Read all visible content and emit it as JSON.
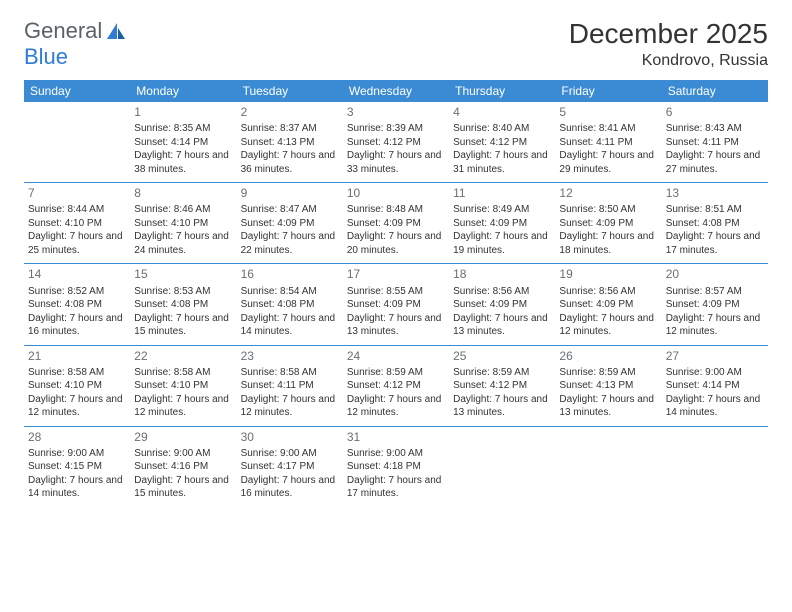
{
  "logo": {
    "part1": "General",
    "part2": "Blue"
  },
  "title": "December 2025",
  "location": "Kondrovo, Russia",
  "theme": {
    "header_bg": "#3b8bd4",
    "header_fg": "#ffffff",
    "rule_color": "#3b8bd4",
    "text_color": "#333333",
    "daynum_color": "#6a6f75",
    "page_bg": "#ffffff"
  },
  "days_of_week": [
    "Sunday",
    "Monday",
    "Tuesday",
    "Wednesday",
    "Thursday",
    "Friday",
    "Saturday"
  ],
  "weeks": [
    [
      null,
      {
        "n": "1",
        "sr": "8:35 AM",
        "ss": "4:14 PM",
        "dl": "7 hours and 38 minutes."
      },
      {
        "n": "2",
        "sr": "8:37 AM",
        "ss": "4:13 PM",
        "dl": "7 hours and 36 minutes."
      },
      {
        "n": "3",
        "sr": "8:39 AM",
        "ss": "4:12 PM",
        "dl": "7 hours and 33 minutes."
      },
      {
        "n": "4",
        "sr": "8:40 AM",
        "ss": "4:12 PM",
        "dl": "7 hours and 31 minutes."
      },
      {
        "n": "5",
        "sr": "8:41 AM",
        "ss": "4:11 PM",
        "dl": "7 hours and 29 minutes."
      },
      {
        "n": "6",
        "sr": "8:43 AM",
        "ss": "4:11 PM",
        "dl": "7 hours and 27 minutes."
      }
    ],
    [
      {
        "n": "7",
        "sr": "8:44 AM",
        "ss": "4:10 PM",
        "dl": "7 hours and 25 minutes."
      },
      {
        "n": "8",
        "sr": "8:46 AM",
        "ss": "4:10 PM",
        "dl": "7 hours and 24 minutes."
      },
      {
        "n": "9",
        "sr": "8:47 AM",
        "ss": "4:09 PM",
        "dl": "7 hours and 22 minutes."
      },
      {
        "n": "10",
        "sr": "8:48 AM",
        "ss": "4:09 PM",
        "dl": "7 hours and 20 minutes."
      },
      {
        "n": "11",
        "sr": "8:49 AM",
        "ss": "4:09 PM",
        "dl": "7 hours and 19 minutes."
      },
      {
        "n": "12",
        "sr": "8:50 AM",
        "ss": "4:09 PM",
        "dl": "7 hours and 18 minutes."
      },
      {
        "n": "13",
        "sr": "8:51 AM",
        "ss": "4:08 PM",
        "dl": "7 hours and 17 minutes."
      }
    ],
    [
      {
        "n": "14",
        "sr": "8:52 AM",
        "ss": "4:08 PM",
        "dl": "7 hours and 16 minutes."
      },
      {
        "n": "15",
        "sr": "8:53 AM",
        "ss": "4:08 PM",
        "dl": "7 hours and 15 minutes."
      },
      {
        "n": "16",
        "sr": "8:54 AM",
        "ss": "4:08 PM",
        "dl": "7 hours and 14 minutes."
      },
      {
        "n": "17",
        "sr": "8:55 AM",
        "ss": "4:09 PM",
        "dl": "7 hours and 13 minutes."
      },
      {
        "n": "18",
        "sr": "8:56 AM",
        "ss": "4:09 PM",
        "dl": "7 hours and 13 minutes."
      },
      {
        "n": "19",
        "sr": "8:56 AM",
        "ss": "4:09 PM",
        "dl": "7 hours and 12 minutes."
      },
      {
        "n": "20",
        "sr": "8:57 AM",
        "ss": "4:09 PM",
        "dl": "7 hours and 12 minutes."
      }
    ],
    [
      {
        "n": "21",
        "sr": "8:58 AM",
        "ss": "4:10 PM",
        "dl": "7 hours and 12 minutes."
      },
      {
        "n": "22",
        "sr": "8:58 AM",
        "ss": "4:10 PM",
        "dl": "7 hours and 12 minutes."
      },
      {
        "n": "23",
        "sr": "8:58 AM",
        "ss": "4:11 PM",
        "dl": "7 hours and 12 minutes."
      },
      {
        "n": "24",
        "sr": "8:59 AM",
        "ss": "4:12 PM",
        "dl": "7 hours and 12 minutes."
      },
      {
        "n": "25",
        "sr": "8:59 AM",
        "ss": "4:12 PM",
        "dl": "7 hours and 13 minutes."
      },
      {
        "n": "26",
        "sr": "8:59 AM",
        "ss": "4:13 PM",
        "dl": "7 hours and 13 minutes."
      },
      {
        "n": "27",
        "sr": "9:00 AM",
        "ss": "4:14 PM",
        "dl": "7 hours and 14 minutes."
      }
    ],
    [
      {
        "n": "28",
        "sr": "9:00 AM",
        "ss": "4:15 PM",
        "dl": "7 hours and 14 minutes."
      },
      {
        "n": "29",
        "sr": "9:00 AM",
        "ss": "4:16 PM",
        "dl": "7 hours and 15 minutes."
      },
      {
        "n": "30",
        "sr": "9:00 AM",
        "ss": "4:17 PM",
        "dl": "7 hours and 16 minutes."
      },
      {
        "n": "31",
        "sr": "9:00 AM",
        "ss": "4:18 PM",
        "dl": "7 hours and 17 minutes."
      },
      null,
      null,
      null
    ]
  ],
  "labels": {
    "sunrise_prefix": "Sunrise: ",
    "sunset_prefix": "Sunset: ",
    "daylight_prefix": "Daylight: "
  }
}
